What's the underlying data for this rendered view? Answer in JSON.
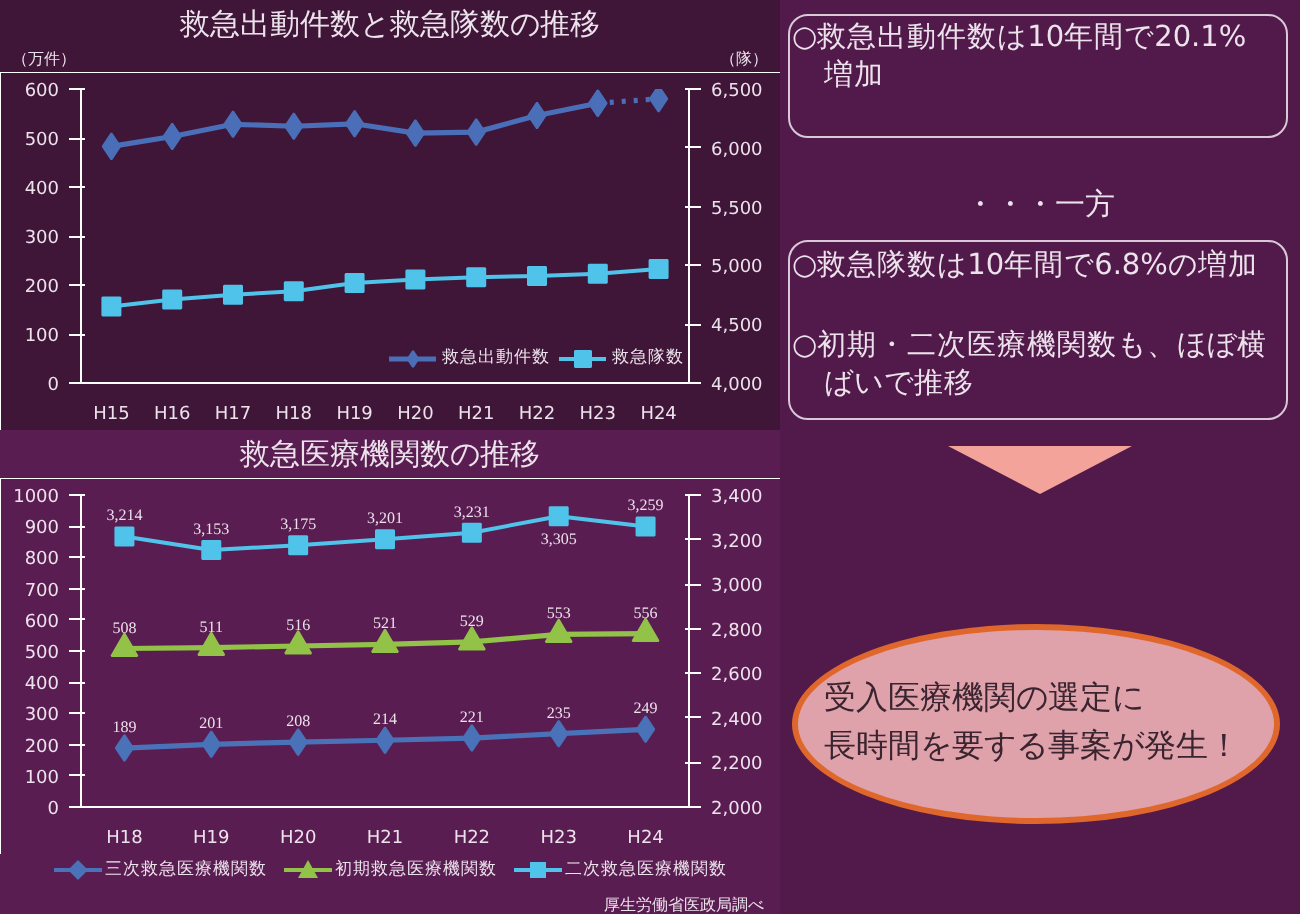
{
  "chart_data": [
    {
      "type": "line",
      "title": "救急出動件数と救急隊数の推移",
      "ylabel": "（万件）",
      "y2label": "（隊）",
      "categories": [
        "H15",
        "H16",
        "H17",
        "H18",
        "H19",
        "H20",
        "H21",
        "H22",
        "H23",
        "H24"
      ],
      "series": [
        {
          "name": "救急出動件数",
          "color": "#4a6fb8",
          "marker": "diamond",
          "values": [
            483,
            503,
            528,
            524,
            529,
            510,
            512,
            546,
            571,
            null
          ]
        },
        {
          "color": "#4a6fb8",
          "marker": "diamond",
          "line_style": "dotted",
          "values": [
            null,
            null,
            null,
            null,
            null,
            null,
            null,
            null,
            571,
            580
          ]
        },
        {
          "name": "救急隊数",
          "color": "#4fc3ea",
          "marker": "square",
          "axis": "y2",
          "values": [
            4650,
            4710,
            4750,
            4780,
            4850,
            4880,
            4900,
            4910,
            4930,
            4970
          ]
        }
      ],
      "ylim": [
        0,
        600
      ],
      "yticks": [
        0,
        100,
        200,
        300,
        400,
        500,
        600
      ],
      "y2lim": [
        4000,
        6500
      ],
      "y2ticks": [
        {
          "value": 4000,
          "label": "4,000"
        },
        {
          "value": 4500,
          "label": "4,500"
        },
        {
          "value": 5000,
          "label": "5,000"
        },
        {
          "value": 5500,
          "label": "5,500"
        },
        {
          "value": 6000,
          "label": "6,000"
        },
        {
          "value": 6500,
          "label": "6,500"
        }
      ],
      "legend": "bottom right",
      "grid": false
    },
    {
      "type": "line",
      "title": "救急医療機関数の推移",
      "categories": [
        "H18",
        "H19",
        "H20",
        "H21",
        "H22",
        "H23",
        "H24"
      ],
      "series": [
        {
          "name": "三次救急医療機関数",
          "color": "#4a72b8",
          "marker": "diamond",
          "values": [
            189,
            201,
            208,
            214,
            221,
            235,
            249
          ],
          "value_labels": [
            "189",
            "201",
            "208",
            "214",
            "221",
            "235",
            "249"
          ]
        },
        {
          "name": "初期救急医療機関数",
          "color": "#92c247",
          "marker": "triangle",
          "values": [
            508,
            511,
            516,
            521,
            529,
            553,
            556
          ],
          "value_labels": [
            "508",
            "511",
            "516",
            "521",
            "529",
            "553",
            "556"
          ]
        },
        {
          "name": "二次救急医療機関数",
          "color": "#4fc3ea",
          "marker": "square",
          "axis": "y2",
          "values": [
            3214,
            3153,
            3175,
            3201,
            3231,
            3305,
            3259
          ],
          "value_labels": [
            "3,214",
            "3,153",
            "3,175",
            "3,201",
            "3,231",
            "3,305",
            "3,259"
          ]
        }
      ],
      "ylim": [
        0,
        1000
      ],
      "yticks": [
        0,
        100,
        200,
        300,
        400,
        500,
        600,
        700,
        800,
        900,
        1000
      ],
      "y2lim": [
        2000,
        3400
      ],
      "y2ticks": [
        {
          "value": 2000,
          "label": "2,000"
        },
        {
          "value": 2200,
          "label": "2,200"
        },
        {
          "value": 2400,
          "label": "2,400"
        },
        {
          "value": 2600,
          "label": "2,600"
        },
        {
          "value": 2800,
          "label": "2,800"
        },
        {
          "value": 3000,
          "label": "3,000"
        },
        {
          "value": 3200,
          "label": "3,200"
        },
        {
          "value": 3400,
          "label": "3,400"
        }
      ],
      "legend": "bottom",
      "grid": false,
      "annotations": [
        "厚生労働省医政局調べ"
      ]
    },
    {
      "type": "other",
      "annotations": [
        "○救急出動件数は10年間で20.1%増加",
        "・・・一方",
        "○救急隊数は10年間で6.8%の増加",
        "○初期・二次医療機関数も、ほぼ横ばいで推移",
        "受入医療機関の選定に長時間を要する事案が発生！"
      ]
    }
  ]
}
